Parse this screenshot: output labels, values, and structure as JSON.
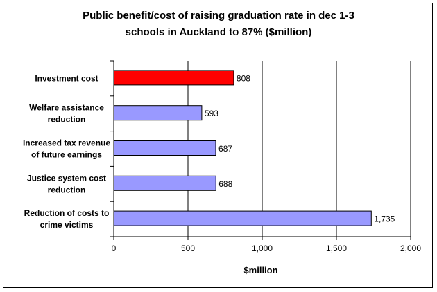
{
  "chart_data": {
    "type": "bar",
    "orientation": "horizontal",
    "title_lines": [
      "Public benefit/cost of raising graduation rate in dec 1-3",
      "schools  in Auckland to 87% ($million)"
    ],
    "categories": [
      [
        "Investment cost"
      ],
      [
        "Welfare assistance",
        "reduction"
      ],
      [
        "Increased tax revenue",
        "of future earnings"
      ],
      [
        "Justice system cost",
        "reduction"
      ],
      [
        "Reduction of costs to",
        "crime victims"
      ]
    ],
    "values": [
      808,
      593,
      687,
      688,
      1735
    ],
    "value_labels": [
      "808",
      "593",
      "687",
      "688",
      "1,735"
    ],
    "bar_colors": [
      "#ff0000",
      "#9999ff",
      "#9999ff",
      "#9999ff",
      "#9999ff"
    ],
    "xlabel": "$million",
    "xlim": [
      0,
      2000
    ],
    "xticks": [
      0,
      500,
      1000,
      1500,
      2000
    ],
    "xtick_labels": [
      "0",
      "500",
      "1,000",
      "1,500",
      "2,000"
    ],
    "grid": "vertical major lines",
    "legend": "none"
  }
}
